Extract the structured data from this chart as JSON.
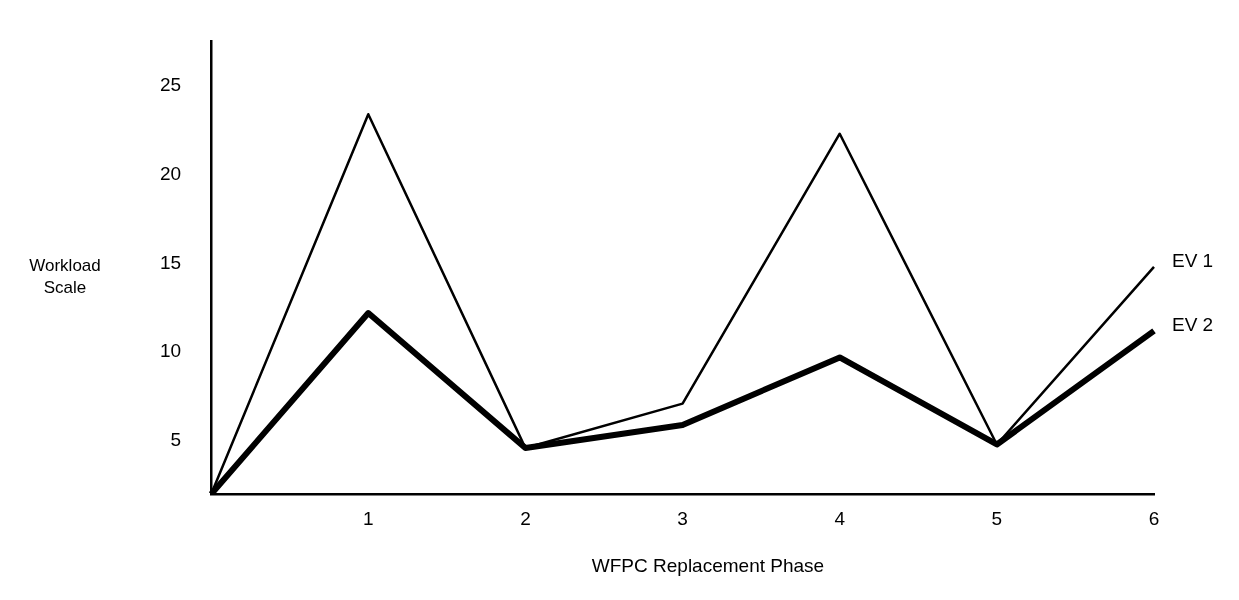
{
  "chart_data": {
    "type": "line",
    "xlabel": "WFPC Replacement Phase",
    "ylabel": "Workload Scale",
    "categories": [
      null,
      "1",
      "2",
      "3",
      "4",
      "5",
      "6"
    ],
    "series": [
      {
        "name": "EV 1",
        "color": "#000000",
        "values": [
          2,
          23.4,
          4.6,
          7.1,
          22.3,
          4.8,
          14.8
        ]
      },
      {
        "name": "EV 2",
        "color": "#000000",
        "values": [
          2,
          12.2,
          4.6,
          5.9,
          9.7,
          4.8,
          11.2
        ]
      }
    ],
    "ylim": [
      2,
      27.5
    ],
    "yticks": [
      5,
      10,
      15,
      20,
      25
    ],
    "grid": false,
    "legend": false,
    "marker": "none",
    "line_style": "solid"
  }
}
